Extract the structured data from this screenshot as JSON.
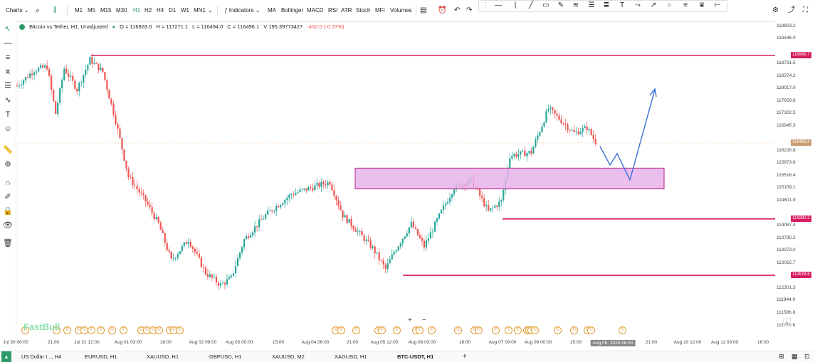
{
  "toolbar": {
    "charts_label": "Charts",
    "timeframes": [
      "M1",
      "M5",
      "M15",
      "M30",
      "H1",
      "H2",
      "H4",
      "D1",
      "W1",
      "MN1"
    ],
    "active_timeframe": "H1",
    "indicators_label": "Indicators",
    "indicators": [
      "MA",
      "Bollinger",
      "MACD",
      "RSI",
      "ATR",
      "Stoch",
      "MFI",
      "Volumes"
    ]
  },
  "legend": {
    "symbol": "Bitcoin vs Tether, H1, Unadjusted",
    "open": "O = 116928.0",
    "high": "H = 117271.1",
    "low": "L = 116494.0",
    "close": "C = 116496.1",
    "volume": "V 195.39773427",
    "change": "-432.0 (-0.37%)"
  },
  "y_axis": {
    "labels": [
      "119803.2",
      "119446.0",
      "118731.5",
      "118374.2",
      "118017.0",
      "117659.8",
      "117302.5",
      "116945.3",
      "116230.8",
      "115873.6",
      "115516.4",
      "115159.1",
      "114801.9",
      "114087.4",
      "113730.2",
      "113373.0",
      "113015.7",
      "112301.3",
      "111944.0",
      "111586.8",
      "111229.6"
    ],
    "tags": {
      "resistance": "118968.7",
      "current": "116465.6",
      "support_mid": "114290.2",
      "support_low": "112678.8"
    }
  },
  "x_axis": {
    "labels": [
      "Jul 30 06:00",
      "21:00",
      "Jul 31 12:00",
      "Aug 01 03:00",
      "18:00",
      "Aug 02 09:00",
      "Aug 03 00:00",
      "15:00",
      "Aug 04 06:00",
      "21:00",
      "Aug 05 12:00",
      "Aug 06 03:00",
      "18:00",
      "Aug 07 09:00",
      "Aug 08 00:00",
      "15:00",
      "Aug 09, 2025 06:00",
      "21:00",
      "Aug 10 12:00",
      "Aug 11 03:00",
      "18:00"
    ]
  },
  "watermark": "FastBull",
  "zoom": {
    "plus": "+",
    "minus": "−"
  },
  "tabs": [
    "US Dollar I..., H4",
    "EURUSD, H1",
    "XAUUSD, H1",
    "GBPUSD, H1",
    "XAUUSD, M2",
    "XAGUSD, H1",
    "BTC-USDT, H1"
  ],
  "active_tab": "BTC-USDT, H1",
  "add_tab": "+",
  "colors": {
    "bull": "#26a69a",
    "bear": "#ef5350",
    "level_line": "#d81b60",
    "zone_fill": "#e8b3ea",
    "zone_border": "#b4218a",
    "arrow": "#3d6fd8",
    "active": "#2e9c66"
  }
}
